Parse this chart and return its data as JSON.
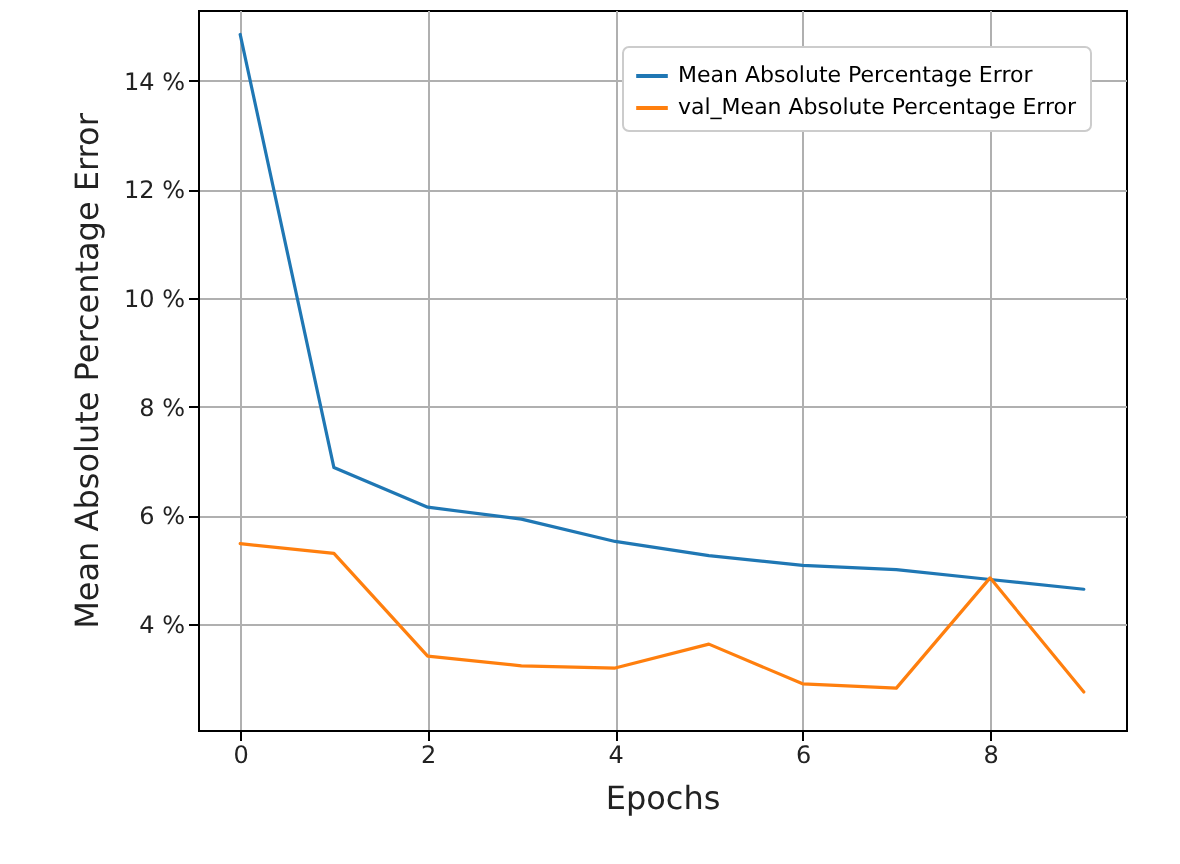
{
  "chart_data": {
    "type": "line",
    "xlabel": "Epochs",
    "ylabel": "Mean Absolute Percentage Error",
    "x": [
      0,
      1,
      2,
      3,
      4,
      5,
      6,
      7,
      8,
      9
    ],
    "series": [
      {
        "name": "Mean Absolute Percentage Error",
        "color": "#1f77b4",
        "values": [
          14.85,
          6.88,
          6.15,
          5.93,
          5.52,
          5.26,
          5.08,
          5.0,
          4.82,
          4.64
        ]
      },
      {
        "name": "val_Mean Absolute Percentage Error",
        "color": "#ff7f0e",
        "values": [
          5.48,
          5.3,
          3.41,
          3.23,
          3.19,
          3.63,
          2.9,
          2.82,
          4.85,
          2.75
        ]
      }
    ],
    "xlim": [
      -0.45,
      9.45
    ],
    "ylim": [
      2.05,
      15.3
    ],
    "xticks": [
      0,
      2,
      4,
      6,
      8
    ],
    "yticks": [
      {
        "value": 4,
        "label": "4 %"
      },
      {
        "value": 6,
        "label": "6 %"
      },
      {
        "value": 8,
        "label": "8 %"
      },
      {
        "value": 10,
        "label": "10 %"
      },
      {
        "value": 12,
        "label": "12 %"
      },
      {
        "value": 14,
        "label": "14 %"
      }
    ],
    "grid": true,
    "legend": "top right",
    "marker": "none",
    "line_style": "solid"
  }
}
